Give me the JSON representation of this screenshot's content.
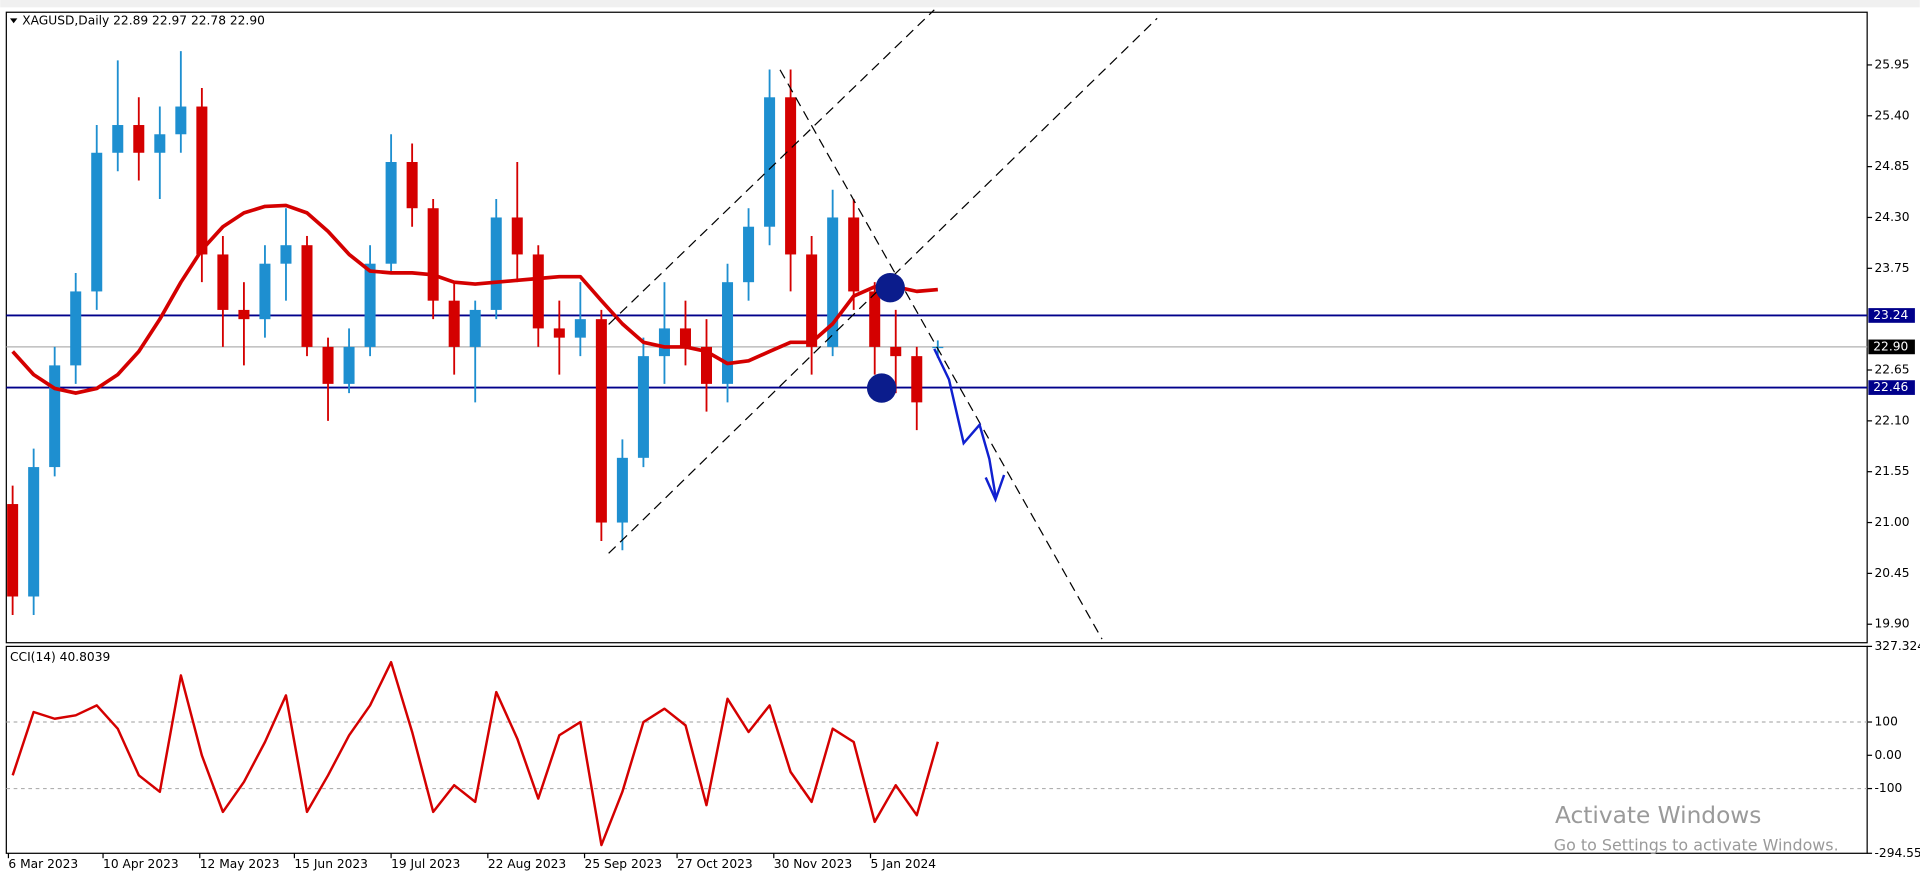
{
  "chart_data": [
    {
      "type": "candlestick",
      "title": "XAGUSD,Daily  22.89 22.97 22.78 22.90",
      "up_color": "#1e8fd0",
      "down_color": "#d40000",
      "open": [
        21.2,
        20.2,
        21.6,
        22.7,
        23.5,
        25.0,
        25.3,
        25.0,
        25.2,
        25.5,
        23.9,
        23.3,
        23.2,
        23.8,
        24.0,
        22.9,
        22.5,
        22.9,
        23.8,
        24.9,
        24.4,
        23.4,
        22.9,
        23.3,
        24.3,
        23.9,
        23.1,
        23.0,
        23.2,
        21.0,
        21.7,
        22.8,
        23.1,
        22.9,
        22.5,
        23.6,
        24.2,
        25.6,
        23.9,
        22.9,
        24.3,
        23.5,
        22.9,
        22.8,
        22.89
      ],
      "high": [
        21.4,
        21.8,
        22.9,
        23.7,
        25.3,
        26.0,
        25.6,
        25.5,
        26.1,
        25.7,
        24.1,
        23.6,
        24.0,
        24.4,
        24.1,
        23.0,
        23.1,
        24.0,
        25.2,
        25.1,
        24.5,
        23.6,
        23.4,
        24.5,
        24.9,
        24.0,
        23.4,
        23.6,
        23.3,
        21.9,
        23.0,
        23.6,
        23.4,
        23.2,
        23.8,
        24.4,
        25.9,
        25.9,
        24.1,
        24.6,
        24.5,
        23.6,
        23.3,
        22.9,
        22.97
      ],
      "low": [
        20.0,
        20.0,
        21.5,
        22.5,
        23.3,
        24.8,
        24.7,
        24.5,
        25.0,
        23.6,
        22.9,
        22.7,
        23.0,
        23.4,
        22.8,
        22.1,
        22.4,
        22.8,
        23.7,
        24.2,
        23.2,
        22.6,
        22.3,
        23.2,
        23.6,
        22.9,
        22.6,
        22.8,
        20.8,
        20.7,
        21.6,
        22.5,
        22.7,
        22.2,
        22.3,
        23.4,
        24.0,
        23.5,
        22.6,
        22.8,
        23.3,
        22.6,
        22.4,
        22.0,
        22.78
      ],
      "close": [
        20.2,
        21.6,
        22.7,
        23.5,
        25.0,
        25.3,
        25.0,
        25.2,
        25.5,
        23.9,
        23.3,
        23.2,
        23.8,
        24.0,
        22.9,
        22.5,
        22.9,
        23.8,
        24.9,
        24.4,
        23.4,
        22.9,
        23.3,
        24.3,
        23.9,
        23.1,
        23.0,
        23.2,
        21.0,
        21.7,
        22.8,
        23.1,
        22.9,
        22.5,
        23.6,
        24.2,
        25.6,
        23.9,
        22.9,
        24.3,
        23.5,
        22.9,
        22.8,
        22.3,
        22.9
      ],
      "overlays": [
        {
          "color": "#d40000",
          "values": [
            22.85,
            22.6,
            22.45,
            22.4,
            22.45,
            22.6,
            22.85,
            23.2,
            23.6,
            23.95,
            24.2,
            24.35,
            24.42,
            24.43,
            24.35,
            24.15,
            23.9,
            23.72,
            23.7,
            23.7,
            23.68,
            23.6,
            23.58,
            23.6,
            23.62,
            23.64,
            23.66,
            23.66,
            23.4,
            23.15,
            22.95,
            22.9,
            22.9,
            22.85,
            22.72,
            22.75,
            22.85,
            22.95,
            22.95,
            23.15,
            23.45,
            23.55,
            23.55,
            23.5,
            23.52
          ]
        }
      ],
      "levels": [
        {
          "value": 23.24,
          "color": "#00008b"
        },
        {
          "value": 22.46,
          "color": "#00008b"
        },
        {
          "value": 22.9,
          "label": "22.90",
          "color": "#000000"
        }
      ],
      "xlim": [
        -0.3,
        88.2
      ],
      "xticks": [
        {
          "value": -0.2,
          "label": "6 Mar 2023"
        },
        {
          "value": 4.3,
          "label": "10 Apr 2023"
        },
        {
          "value": 8.9,
          "label": "12 May 2023"
        },
        {
          "value": 13.4,
          "label": "15 Jun 2023"
        },
        {
          "value": 18.0,
          "label": "19 Jul 2023"
        },
        {
          "value": 22.6,
          "label": "22 Aug 2023"
        },
        {
          "value": 27.2,
          "label": "25 Sep 2023"
        },
        {
          "value": 31.6,
          "label": "27 Oct 2023"
        },
        {
          "value": 36.2,
          "label": "30 Nov 2023"
        },
        {
          "value": 40.8,
          "label": "5 Jan 2024"
        }
      ],
      "ylim": [
        19.7,
        26.52
      ],
      "yticks": [
        {
          "value": 19.9,
          "label": "19.90"
        },
        20.45,
        {
          "value": 21,
          "label": "21.00"
        },
        21.55,
        {
          "value": 22.1,
          "label": "22.10"
        },
        22.65,
        23.75,
        {
          "value": 24.3,
          "label": "24.30"
        },
        24.85,
        {
          "value": 25.4,
          "label": "25.40"
        },
        25.95
      ]
    },
    {
      "type": "line",
      "title": "CCI(14) 40.8039",
      "color": "#d40000",
      "values": [
        -60,
        130,
        110,
        120,
        150,
        80,
        -60,
        -110,
        240,
        0,
        -170,
        -80,
        40,
        180,
        -170,
        -60,
        60,
        150,
        280,
        70,
        -170,
        -90,
        -140,
        190,
        50,
        -130,
        60,
        100,
        -270,
        -110,
        100,
        140,
        90,
        -150,
        170,
        70,
        150,
        -50,
        -140,
        80,
        40,
        -200,
        -90,
        -180,
        40.8039
      ],
      "xlim": [
        -0.3,
        88.2
      ],
      "ylim": [
        -294.557,
        327.324
      ],
      "yticks": [
        327.324,
        100,
        {
          "value": 0,
          "label": "0.00"
        },
        -100,
        -294.557
      ],
      "levels": [
        100,
        -100
      ]
    }
  ],
  "overlay": {
    "title": "Activate Windows",
    "subtitle": "Go to Settings to activate Windows."
  }
}
